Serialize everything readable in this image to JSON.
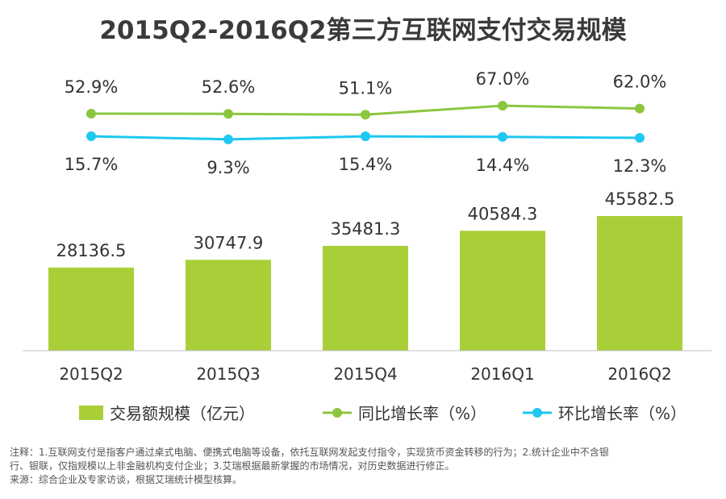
{
  "chart_data": {
    "type": "bar+line",
    "title": "2015Q2-2016Q2第三方互联网支付交易规模",
    "categories": [
      "2015Q2",
      "2015Q3",
      "2015Q4",
      "2016Q1",
      "2016Q2"
    ],
    "series": [
      {
        "name": "交易额规模（亿元）",
        "type": "bar",
        "values": [
          28136.5,
          30747.9,
          35481.3,
          40584.3,
          45582.5
        ],
        "color": "#a9cf38"
      },
      {
        "name": "同比增长率（%）",
        "type": "line",
        "values": [
          52.9,
          52.6,
          51.1,
          67.0,
          62.0
        ],
        "color": "#8cc63f"
      },
      {
        "name": "环比增长率（%）",
        "type": "line",
        "values": [
          15.7,
          9.3,
          15.4,
          14.4,
          12.3
        ],
        "color": "#1ec8f0"
      }
    ],
    "bar_labels": [
      "28136.5",
      "30747.9",
      "35481.3",
      "40584.3",
      "45582.5"
    ],
    "yoy_labels": [
      "52.9%",
      "52.6%",
      "51.1%",
      "67.0%",
      "62.0%"
    ],
    "qoq_labels": [
      "15.7%",
      "9.3%",
      "15.4%",
      "14.4%",
      "12.3%"
    ],
    "legend": [
      "交易额规模（亿元）",
      "同比增长率（%）",
      "环比增长率（%）"
    ],
    "legend_position": "bottom"
  },
  "notes": {
    "line1": "注释：1.互联网支付是指客户通过桌式电脑、便携式电脑等设备，依托互联网发起支付指令，实现货币资金转移的行为；2.统计企业中不含银",
    "line2": "行、银联，仅指规模以上非金融机构支付企业；3.艾瑞根据最新掌握的市场情况，对历史数据进行修正。",
    "line3": "来源：综合企业及专家访谈，根据艾瑞统计模型核算。"
  }
}
